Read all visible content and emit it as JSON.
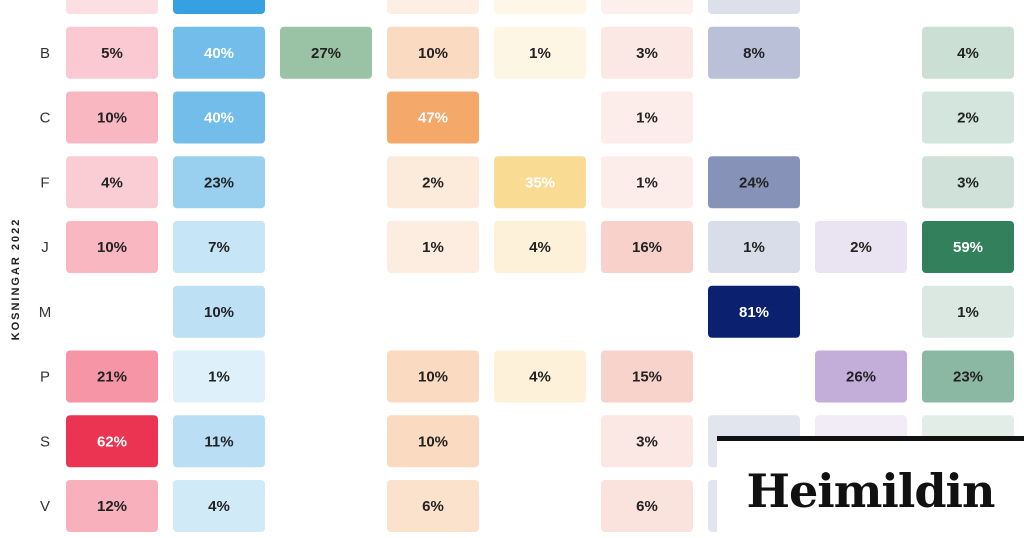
{
  "chart_data": {
    "type": "heatmap",
    "ylabel": "KOSNINGAR 2022",
    "rows": [
      "",
      "B",
      "C",
      "F",
      "J",
      "M",
      "P",
      "S",
      "V"
    ],
    "column_colors": [
      "#e8173a",
      "#2b9ce0",
      "#3f8a52",
      "#f08a34",
      "#f5c451",
      "#ec8b78",
      "#0b2170",
      "#8b5fb6",
      "#0d6a3f"
    ],
    "values": [
      [
        null,
        null,
        null,
        null,
        null,
        null,
        null,
        null,
        null
      ],
      [
        5,
        40,
        27,
        10,
        1,
        3,
        8,
        null,
        4
      ],
      [
        10,
        40,
        null,
        47,
        null,
        1,
        null,
        null,
        2
      ],
      [
        4,
        23,
        null,
        2,
        35,
        1,
        24,
        null,
        3
      ],
      [
        10,
        7,
        null,
        1,
        4,
        16,
        1,
        2,
        59
      ],
      [
        null,
        10,
        null,
        null,
        null,
        null,
        81,
        null,
        1
      ],
      [
        21,
        1,
        null,
        10,
        4,
        15,
        null,
        26,
        23
      ],
      [
        62,
        11,
        null,
        10,
        null,
        3,
        null,
        null,
        null
      ],
      [
        12,
        4,
        null,
        6,
        null,
        6,
        null,
        null,
        null
      ]
    ],
    "top_row_shaded": [
      true,
      true,
      false,
      true,
      true,
      true,
      true,
      false,
      false
    ],
    "hidden_cells_shaded": [
      [
        7,
        6
      ],
      [
        7,
        7
      ],
      [
        7,
        8
      ],
      [
        8,
        6
      ]
    ],
    "text_colors": {
      "dark": "#222222",
      "light": "#ffffff"
    }
  },
  "brand": {
    "logo_text": "Heimildin",
    "color": "#111111"
  }
}
